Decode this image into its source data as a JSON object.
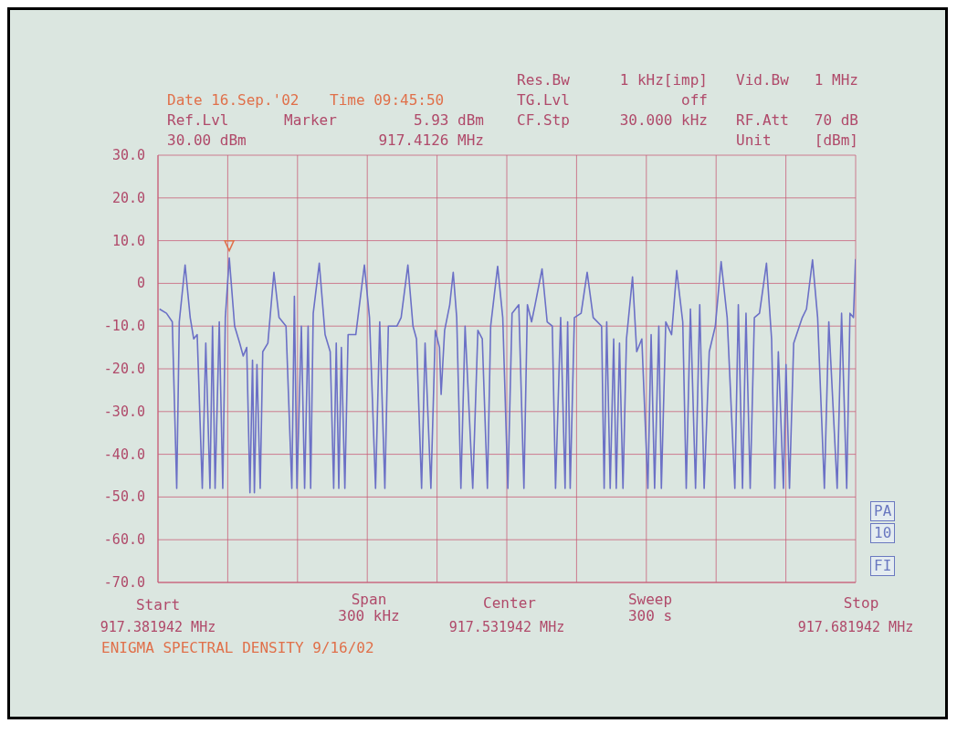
{
  "chart_data": {
    "type": "line",
    "annotations": [
      "Date 16.Sep.'02",
      "Time 09:45:50",
      "Ref.Lvl",
      "30.00 dBm",
      "Marker",
      "5.93 dBm",
      "917.4126 MHz",
      "Res.Bw",
      "TG.Lvl",
      "CF.Stp",
      "1 kHz[imp]",
      "off",
      "30.000 kHz",
      "Vid.Bw",
      "RF.Att",
      "Unit",
      "1 MHz",
      "70 dB",
      "[dBm]",
      "Start",
      "Span",
      "300 kHz",
      "Center",
      "Sweep",
      "300 s",
      "Stop",
      "PA",
      "10",
      "FI",
      "ENIGMA SPECTRAL DENSITY 9/16/02"
    ],
    "xlim": [
      917.381942,
      917.681942
    ],
    "xticks": [
      {
        "value": 917.381942,
        "label": "917.381942 MHz"
      },
      {
        "value": 917.411942,
        "label": null
      },
      {
        "value": 917.441942,
        "label": null
      },
      {
        "value": 917.471942,
        "label": null
      },
      {
        "value": 917.501942,
        "label": null
      },
      {
        "value": 917.531942,
        "label": "917.531942 MHz"
      },
      {
        "value": 917.561942,
        "label": null
      },
      {
        "value": 917.591942,
        "label": null
      },
      {
        "value": 917.621942,
        "label": null
      },
      {
        "value": 917.651942,
        "label": null
      },
      {
        "value": 917.681942,
        "label": "917.681942 MHz"
      }
    ],
    "ylim": [
      -70,
      30
    ],
    "yticks": [
      {
        "value": 30,
        "label": "30.0"
      },
      {
        "value": 20,
        "label": "20.0"
      },
      {
        "value": 10,
        "label": "10.0"
      },
      0,
      {
        "value": -10,
        "label": "-10.0"
      },
      {
        "value": -20,
        "label": "-20.0"
      },
      {
        "value": -30,
        "label": "-30.0"
      },
      {
        "value": -40,
        "label": "-40.0"
      },
      {
        "value": -50,
        "label": "-50.0"
      },
      {
        "value": -60,
        "label": "-60.0"
      },
      {
        "value": -70,
        "label": "-70.0"
      }
    ],
    "grid": true,
    "series": [
      {
        "color": "#6b70c6",
        "x": [
          917.3826,
          917.3856,
          917.3881,
          917.39,
          917.3911,
          917.3936,
          917.3958,
          917.3973,
          917.3988,
          917.401,
          917.4025,
          917.4043,
          917.4054,
          917.4065,
          917.4083,
          917.4098,
          917.4109,
          917.4126,
          917.4149,
          917.4171,
          917.4186,
          917.4201,
          917.4215,
          917.4226,
          917.4234,
          917.4245,
          917.4259,
          917.427,
          917.4292,
          917.4318,
          917.434,
          917.437,
          917.4395,
          917.4406,
          917.4417,
          917.4436,
          917.445,
          917.4465,
          917.4476,
          917.4487,
          917.4513,
          917.4538,
          917.456,
          917.4575,
          917.4586,
          917.4597,
          917.4608,
          917.4623,
          917.4637,
          917.467,
          917.4707,
          917.4729,
          917.4755,
          917.4773,
          917.4795,
          917.481,
          917.4847,
          917.4865,
          917.4894,
          917.4916,
          917.4931,
          917.4953,
          917.4968,
          917.4993,
          917.5012,
          917.503,
          917.5037,
          917.5052,
          917.5074,
          917.5089,
          917.5104,
          917.5122,
          917.514,
          917.5173,
          917.5195,
          917.5214,
          917.5236,
          917.525,
          917.528,
          917.5302,
          917.5324,
          917.5342,
          917.5371,
          917.5393,
          917.5408,
          917.5426,
          917.5441,
          917.5471,
          917.5493,
          917.5515,
          917.5529,
          917.5551,
          917.557,
          917.5581,
          917.5592,
          917.561,
          917.5639,
          917.5665,
          917.5691,
          917.5727,
          917.5738,
          917.5749,
          917.5764,
          917.5779,
          917.579,
          917.5804,
          917.5819,
          917.5834,
          917.586,
          917.5878,
          917.59,
          917.5926,
          917.594,
          917.5955,
          917.5973,
          917.5984,
          917.6003,
          917.6028,
          917.605,
          917.6076,
          917.6091,
          917.6109,
          917.6131,
          917.6149,
          917.6168,
          917.619,
          917.6216,
          917.6241,
          917.6267,
          917.63,
          917.6315,
          917.6333,
          917.6348,
          917.6366,
          917.6384,
          917.6406,
          917.6436,
          917.6458,
          917.6472,
          917.6487,
          917.6509,
          917.652,
          917.6535,
          917.6553,
          917.659,
          917.6608,
          917.6634,
          917.6656,
          917.6685,
          917.6704,
          917.674,
          917.6759,
          917.6781,
          917.6795,
          917.681,
          917.6819
        ],
        "values": [
          -6,
          -7,
          -9,
          -48,
          -9,
          4.3,
          -8,
          -13,
          -12,
          -48,
          -14,
          -48,
          -10,
          -48,
          -9,
          -48,
          -8,
          5.93,
          -10,
          -14,
          -17,
          -15,
          -49,
          -18,
          -49,
          -19,
          -48,
          -16,
          -14,
          2.6,
          -8,
          -10,
          -48,
          -3,
          -48,
          -10,
          -48,
          -10,
          -48,
          -7,
          4.7,
          -12,
          -16,
          -48,
          -14,
          -48,
          -15,
          -48,
          -12,
          -12,
          4.3,
          -8,
          -48,
          -9,
          -48,
          -10,
          -10,
          -8,
          4.3,
          -10,
          -13,
          -48,
          -14,
          -48,
          -11,
          -15,
          -26,
          -11,
          -5,
          2.6,
          -8,
          -48,
          -10,
          -48,
          -11,
          -13,
          -48,
          -10,
          4,
          -8,
          -48,
          -7,
          -5,
          -48,
          -5,
          -9,
          -5,
          3.4,
          -9,
          -10,
          -48,
          -8,
          -48,
          -9,
          -48,
          -8,
          -7,
          2.6,
          -8,
          -10,
          -48,
          -9,
          -48,
          -13,
          -48,
          -14,
          -48,
          -13,
          1.5,
          -16,
          -13,
          -48,
          -12,
          -48,
          -10,
          -48,
          -9,
          -12,
          3,
          -9,
          -48,
          -6,
          -48,
          -5,
          -48,
          -16,
          -10,
          5.1,
          -8,
          -48,
          -5,
          -48,
          -7,
          -48,
          -8,
          -7,
          4.7,
          -13,
          -48,
          -16,
          -48,
          -19,
          -48,
          -14,
          -8,
          -6,
          5.5,
          -8,
          -48,
          -9,
          -48,
          -7,
          -48,
          -7,
          -8,
          5.7
        ]
      }
    ]
  }
}
